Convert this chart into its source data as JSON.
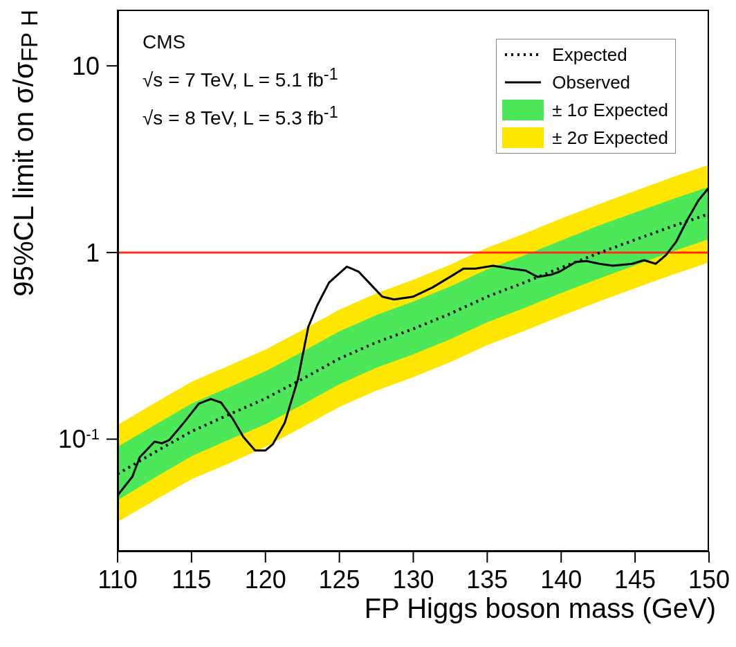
{
  "chart_data": {
    "type": "line",
    "xlabel": "FP Higgs boson mass (GeV)",
    "ylabel": "95%CL limit on σ/σ$_{FP H}$",
    "xlim": [
      110,
      150
    ],
    "xticks": [
      110,
      115,
      120,
      125,
      130,
      135,
      140,
      145,
      150
    ],
    "ylim": [
      0.025,
      20
    ],
    "yticks": [
      {
        "value": 0.1,
        "label": "10$^{-1}$"
      },
      1,
      10
    ],
    "log": "y",
    "grid": false,
    "legend": "top right",
    "annotations": [
      "CMS",
      "√s = 7 TeV, L = 5.1 fb$^{-1}$",
      "√s = 8 TeV, L = 5.3 fb$^{-1}$"
    ],
    "ref_lines": [
      {
        "axis": "y",
        "value": 1,
        "color": "#ff2a1a",
        "line_style": "solid"
      }
    ],
    "series": [
      {
        "name": "Expected",
        "type": "line",
        "color": "#000000",
        "line_style": "dotted",
        "x": [
          110,
          112.5,
          115,
          117.5,
          120,
          122.5,
          125,
          127.5,
          130,
          132.5,
          135,
          137.5,
          140,
          142.5,
          145,
          147.5,
          150
        ],
        "values": [
          0.065,
          0.085,
          0.11,
          0.135,
          0.165,
          0.21,
          0.27,
          0.33,
          0.39,
          0.47,
          0.58,
          0.69,
          0.83,
          0.99,
          1.17,
          1.38,
          1.61
        ]
      },
      {
        "name": "Observed",
        "type": "line",
        "color": "#000000",
        "line_style": "solid",
        "x": [
          110,
          111,
          111.5,
          112.5,
          113,
          113.5,
          114.5,
          115.5,
          116.3,
          117,
          117.8,
          118.5,
          119.3,
          120,
          120.5,
          121.3,
          122.2,
          122.9,
          123.5,
          124.3,
          125.5,
          126.3,
          127,
          127.9,
          128.7,
          130,
          131.3,
          132.6,
          133.4,
          134.2,
          135.4,
          136.6,
          137.6,
          138.4,
          139.3,
          139.9,
          141,
          141.7,
          142.6,
          143.5,
          144.8,
          145.6,
          146.4,
          147.1,
          147.8,
          148.5,
          149.3,
          150
        ],
        "values": [
          0.05,
          0.063,
          0.08,
          0.097,
          0.095,
          0.099,
          0.123,
          0.155,
          0.164,
          0.157,
          0.128,
          0.103,
          0.087,
          0.087,
          0.094,
          0.122,
          0.21,
          0.4,
          0.52,
          0.69,
          0.84,
          0.79,
          0.69,
          0.58,
          0.56,
          0.58,
          0.65,
          0.75,
          0.82,
          0.82,
          0.85,
          0.82,
          0.8,
          0.74,
          0.76,
          0.79,
          0.89,
          0.9,
          0.87,
          0.85,
          0.87,
          0.91,
          0.87,
          0.97,
          1.15,
          1.48,
          1.91,
          2.23
        ]
      },
      {
        "name": "± 1σ Expected",
        "type": "area",
        "color": "#4ce85a",
        "x": [
          110,
          112.5,
          115,
          117.5,
          120,
          122.5,
          125,
          127.5,
          130,
          132.5,
          135,
          137.5,
          140,
          142.5,
          145,
          147.5,
          150
        ],
        "values": [
          null,
          null,
          null,
          null,
          null,
          null,
          null,
          null,
          null,
          null,
          null,
          null,
          null,
          null,
          null,
          null,
          null
        ],
        "lower": [
          0.047,
          0.062,
          0.081,
          0.099,
          0.12,
          0.153,
          0.197,
          0.241,
          0.285,
          0.343,
          0.423,
          0.504,
          0.606,
          0.723,
          0.854,
          1.01,
          1.18
        ],
        "upper": [
          0.091,
          0.119,
          0.155,
          0.189,
          0.231,
          0.294,
          0.378,
          0.462,
          0.546,
          0.658,
          0.812,
          0.966,
          1.16,
          1.39,
          1.64,
          1.93,
          2.25
        ]
      },
      {
        "name": "± 2σ Expected",
        "type": "area",
        "color": "#ffe600",
        "x": [
          110,
          112.5,
          115,
          117.5,
          120,
          122.5,
          125,
          127.5,
          130,
          132.5,
          135,
          137.5,
          140,
          142.5,
          145,
          147.5,
          150
        ],
        "values": [
          null,
          null,
          null,
          null,
          null,
          null,
          null,
          null,
          null,
          null,
          null,
          null,
          null,
          null,
          null,
          null,
          null
        ],
        "lower": [
          0.036,
          0.047,
          0.061,
          0.074,
          0.091,
          0.116,
          0.149,
          0.182,
          0.215,
          0.259,
          0.319,
          0.38,
          0.457,
          0.545,
          0.644,
          0.759,
          0.886
        ],
        "upper": [
          0.119,
          0.156,
          0.203,
          0.247,
          0.302,
          0.384,
          0.494,
          0.604,
          0.714,
          0.86,
          1.06,
          1.26,
          1.52,
          1.81,
          2.14,
          2.53,
          2.95
        ]
      }
    ]
  }
}
